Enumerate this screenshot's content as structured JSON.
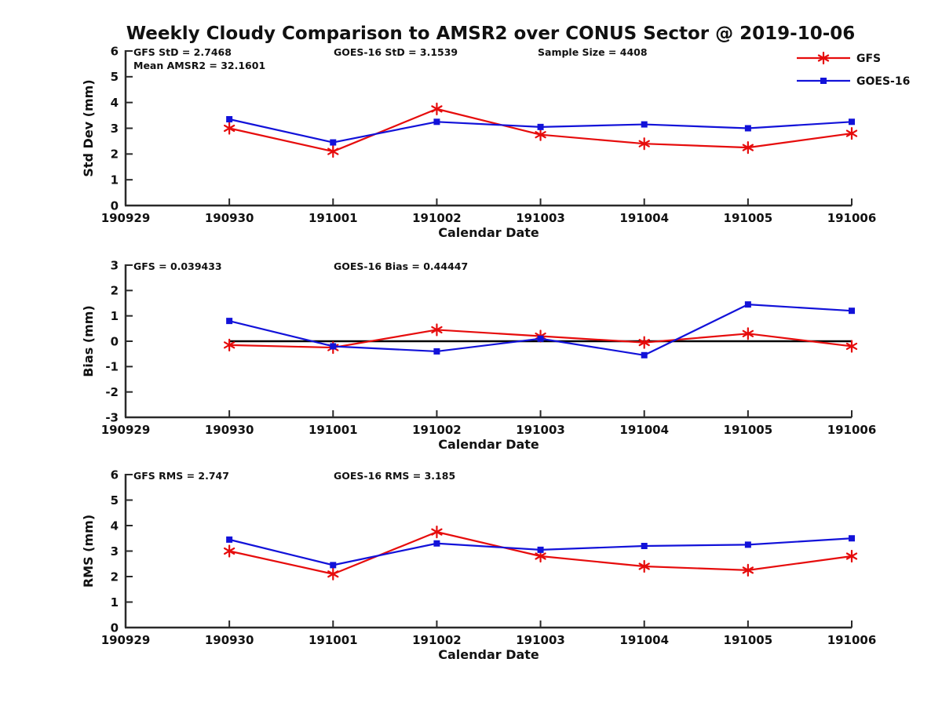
{
  "title": "Weekly Cloudy Comparison to AMSR2 over CONUS Sector @ 2019-10-06",
  "colors": {
    "gfs": "#e60c0c",
    "goes16": "#1212d9",
    "axis": "#2a2a2a",
    "text": "#111111",
    "zero_line": "#000000"
  },
  "legend": {
    "position": "top-right",
    "items": [
      {
        "label": "GFS",
        "marker": "asterisk",
        "color_key": "gfs"
      },
      {
        "label": "GOES-16",
        "marker": "square",
        "color_key": "goes16"
      }
    ]
  },
  "chart_data": [
    {
      "type": "line",
      "panel": "std-dev",
      "ylabel": "Std Dev (mm)",
      "xlabel": "Calendar Date",
      "ylim": [
        0,
        6
      ],
      "yticks": [
        0,
        1,
        2,
        3,
        4,
        5,
        6
      ],
      "x_tick_labels": [
        "190929",
        "190930",
        "191001",
        "191002",
        "191003",
        "191004",
        "191005",
        "191006"
      ],
      "x": [
        "190930",
        "191001",
        "191002",
        "191003",
        "191004",
        "191005",
        "191006"
      ],
      "grid": false,
      "zero_line": false,
      "annotations": [
        {
          "text": "GFS StD = 2.7468",
          "col": 0,
          "row": 0
        },
        {
          "text": "Mean AMSR2 = 32.1601",
          "col": 0,
          "row": 1
        },
        {
          "text": "GOES-16 StD = 3.1539",
          "col": 1,
          "row": 0
        },
        {
          "text": "Sample Size = 4408",
          "col": 2,
          "row": 0
        }
      ],
      "series": [
        {
          "name": "GFS",
          "marker": "asterisk",
          "color_key": "gfs",
          "values": [
            3.0,
            2.1,
            3.75,
            2.75,
            2.4,
            2.25,
            2.8
          ]
        },
        {
          "name": "GOES-16",
          "marker": "square",
          "color_key": "goes16",
          "values": [
            3.35,
            2.45,
            3.25,
            3.05,
            3.15,
            3.0,
            3.25
          ]
        }
      ]
    },
    {
      "type": "line",
      "panel": "bias",
      "ylabel": "Bias (mm)",
      "xlabel": "Calendar Date",
      "ylim": [
        -3,
        3
      ],
      "yticks": [
        -3,
        -2,
        -1,
        0,
        1,
        2,
        3
      ],
      "x_tick_labels": [
        "190929",
        "190930",
        "191001",
        "191002",
        "191003",
        "191004",
        "191005",
        "191006"
      ],
      "x": [
        "190930",
        "191001",
        "191002",
        "191003",
        "191004",
        "191005",
        "191006"
      ],
      "grid": false,
      "zero_line": true,
      "annotations": [
        {
          "text": "GFS = 0.039433",
          "col": 0,
          "row": 0
        },
        {
          "text": "GOES-16 Bias  = 0.44447",
          "col": 1,
          "row": 0
        }
      ],
      "series": [
        {
          "name": "GFS",
          "marker": "asterisk",
          "color_key": "gfs",
          "values": [
            -0.15,
            -0.25,
            0.45,
            0.2,
            -0.05,
            0.3,
            -0.2
          ]
        },
        {
          "name": "GOES-16",
          "marker": "square",
          "color_key": "goes16",
          "values": [
            0.8,
            -0.2,
            -0.4,
            0.1,
            -0.55,
            1.45,
            1.2
          ]
        }
      ]
    },
    {
      "type": "line",
      "panel": "rms",
      "ylabel": "RMS (mm)",
      "xlabel": "Calendar Date",
      "ylim": [
        0,
        6
      ],
      "yticks": [
        0,
        1,
        2,
        3,
        4,
        5,
        6
      ],
      "x_tick_labels": [
        "190929",
        "190930",
        "191001",
        "191002",
        "191003",
        "191004",
        "191005",
        "191006"
      ],
      "x": [
        "190930",
        "191001",
        "191002",
        "191003",
        "191004",
        "191005",
        "191006"
      ],
      "grid": false,
      "zero_line": false,
      "annotations": [
        {
          "text": "GFS RMS = 2.747",
          "col": 0,
          "row": 0
        },
        {
          "text": "GOES-16 RMS = 3.185",
          "col": 1,
          "row": 0
        }
      ],
      "series": [
        {
          "name": "GFS",
          "marker": "asterisk",
          "color_key": "gfs",
          "values": [
            3.0,
            2.1,
            3.75,
            2.8,
            2.4,
            2.25,
            2.8
          ]
        },
        {
          "name": "GOES-16",
          "marker": "square",
          "color_key": "goes16",
          "values": [
            3.45,
            2.45,
            3.3,
            3.05,
            3.2,
            3.25,
            3.5
          ]
        }
      ]
    }
  ]
}
